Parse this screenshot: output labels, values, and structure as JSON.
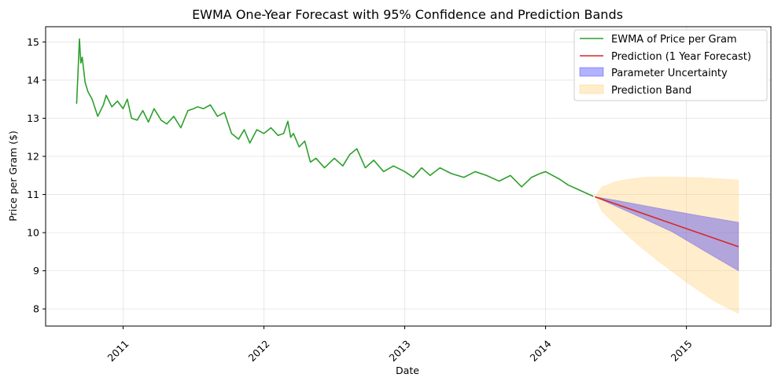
{
  "chart_data": {
    "type": "line",
    "title": "EWMA One-Year Forecast with 95% Confidence and Prediction Bands",
    "xlabel": "Date",
    "ylabel": "Price per Gram ($)",
    "xlim": [
      2010.45,
      2015.6
    ],
    "ylim": [
      7.55,
      15.4
    ],
    "x_ticks": [
      {
        "value": 2011,
        "label": "2011"
      },
      {
        "value": 2012,
        "label": "2012"
      },
      {
        "value": 2013,
        "label": "2013"
      },
      {
        "value": 2014,
        "label": "2014"
      },
      {
        "value": 2015,
        "label": "2015"
      }
    ],
    "y_ticks": [
      {
        "value": 8,
        "label": "8"
      },
      {
        "value": 9,
        "label": "9"
      },
      {
        "value": 10,
        "label": "10"
      },
      {
        "value": 11,
        "label": "11"
      },
      {
        "value": 12,
        "label": "12"
      },
      {
        "value": 13,
        "label": "13"
      },
      {
        "value": 14,
        "label": "14"
      },
      {
        "value": 15,
        "label": "15"
      }
    ],
    "grid": true,
    "legend_position": "top-right",
    "series": [
      {
        "name": "EWMA of Price per Gram",
        "kind": "line",
        "color": "#2ca02c",
        "x": [
          2010.67,
          2010.68,
          2010.69,
          2010.7,
          2010.71,
          2010.73,
          2010.75,
          2010.78,
          2010.82,
          2010.86,
          2010.88,
          2010.92,
          2010.96,
          2011.0,
          2011.03,
          2011.06,
          2011.1,
          2011.14,
          2011.18,
          2011.22,
          2011.27,
          2011.31,
          2011.36,
          2011.41,
          2011.46,
          2011.5,
          2011.53,
          2011.57,
          2011.62,
          2011.67,
          2011.72,
          2011.77,
          2011.82,
          2011.86,
          2011.9,
          2011.95,
          2012.0,
          2012.05,
          2012.1,
          2012.14,
          2012.17,
          2012.19,
          2012.21,
          2012.25,
          2012.29,
          2012.33,
          2012.37,
          2012.43,
          2012.5,
          2012.56,
          2012.61,
          2012.66,
          2012.72,
          2012.78,
          2012.85,
          2012.92,
          2013.0,
          2013.06,
          2013.12,
          2013.18,
          2013.25,
          2013.33,
          2013.42,
          2013.5,
          2013.58,
          2013.67,
          2013.75,
          2013.83,
          2013.9,
          2013.96,
          2014.0,
          2014.05,
          2014.1,
          2014.16,
          2014.22,
          2014.28,
          2014.34
        ],
        "values": [
          13.38,
          14.2,
          15.08,
          14.45,
          14.6,
          13.95,
          13.7,
          13.5,
          13.05,
          13.35,
          13.6,
          13.3,
          13.45,
          13.25,
          13.5,
          13.0,
          12.95,
          13.2,
          12.9,
          13.25,
          12.95,
          12.85,
          13.05,
          12.75,
          13.2,
          13.25,
          13.3,
          13.25,
          13.35,
          13.05,
          13.15,
          12.6,
          12.45,
          12.7,
          12.35,
          12.7,
          12.6,
          12.75,
          12.55,
          12.6,
          12.92,
          12.5,
          12.6,
          12.25,
          12.4,
          11.85,
          11.95,
          11.7,
          11.95,
          11.75,
          12.05,
          12.2,
          11.7,
          11.9,
          11.6,
          11.75,
          11.6,
          11.45,
          11.7,
          11.5,
          11.7,
          11.55,
          11.45,
          11.6,
          11.5,
          11.35,
          11.5,
          11.2,
          11.45,
          11.55,
          11.6,
          11.5,
          11.4,
          11.25,
          11.15,
          11.05,
          10.95
        ]
      },
      {
        "name": "Prediction (1 Year Forecast)",
        "kind": "line",
        "color": "#d62728",
        "x": [
          2014.35,
          2015.37
        ],
        "values": [
          10.94,
          9.63
        ]
      },
      {
        "name": "Parameter Uncertainty",
        "kind": "band",
        "color": "#0000ff",
        "x": [
          2014.35,
          2014.5,
          2014.7,
          2014.9,
          2015.1,
          2015.37
        ],
        "upper": [
          10.94,
          10.85,
          10.71,
          10.57,
          10.44,
          10.27
        ],
        "lower": [
          10.94,
          10.69,
          10.36,
          10.02,
          9.58,
          9.0
        ]
      },
      {
        "name": "Prediction Band",
        "kind": "band",
        "color": "#ffd27f",
        "x": [
          2014.35,
          2014.4,
          2014.5,
          2014.6,
          2014.7,
          2014.8,
          2014.9,
          2015.0,
          2015.1,
          2015.2,
          2015.37
        ],
        "upper": [
          10.94,
          11.2,
          11.34,
          11.41,
          11.45,
          11.46,
          11.46,
          11.45,
          11.44,
          11.42,
          11.38
        ],
        "lower": [
          10.94,
          10.56,
          10.2,
          9.86,
          9.55,
          9.25,
          8.98,
          8.7,
          8.45,
          8.2,
          7.88
        ]
      }
    ]
  }
}
